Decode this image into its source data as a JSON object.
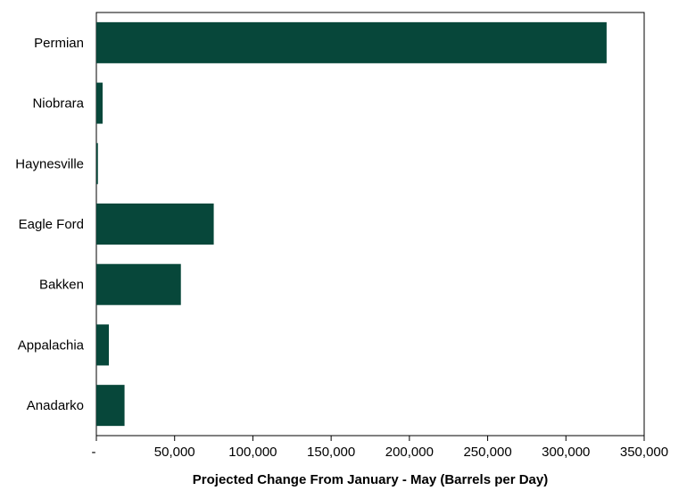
{
  "chart_data": {
    "type": "bar",
    "orientation": "horizontal",
    "categories": [
      "Permian",
      "Niobrara",
      "Haynesville",
      "Eagle Ford",
      "Bakken",
      "Appalachia",
      "Anadarko"
    ],
    "values": [
      326000,
      4000,
      1000,
      75000,
      54000,
      8000,
      18000
    ],
    "xlabel": "Projected Change From January - May (Barrels per Day)",
    "xlim": [
      0,
      350000
    ],
    "x_ticks": [
      "-",
      "50,000",
      "100,000",
      "150,000",
      "200,000",
      "250,000",
      "300,000",
      "350,000"
    ],
    "grid": false,
    "bar_color": "#07473A"
  }
}
